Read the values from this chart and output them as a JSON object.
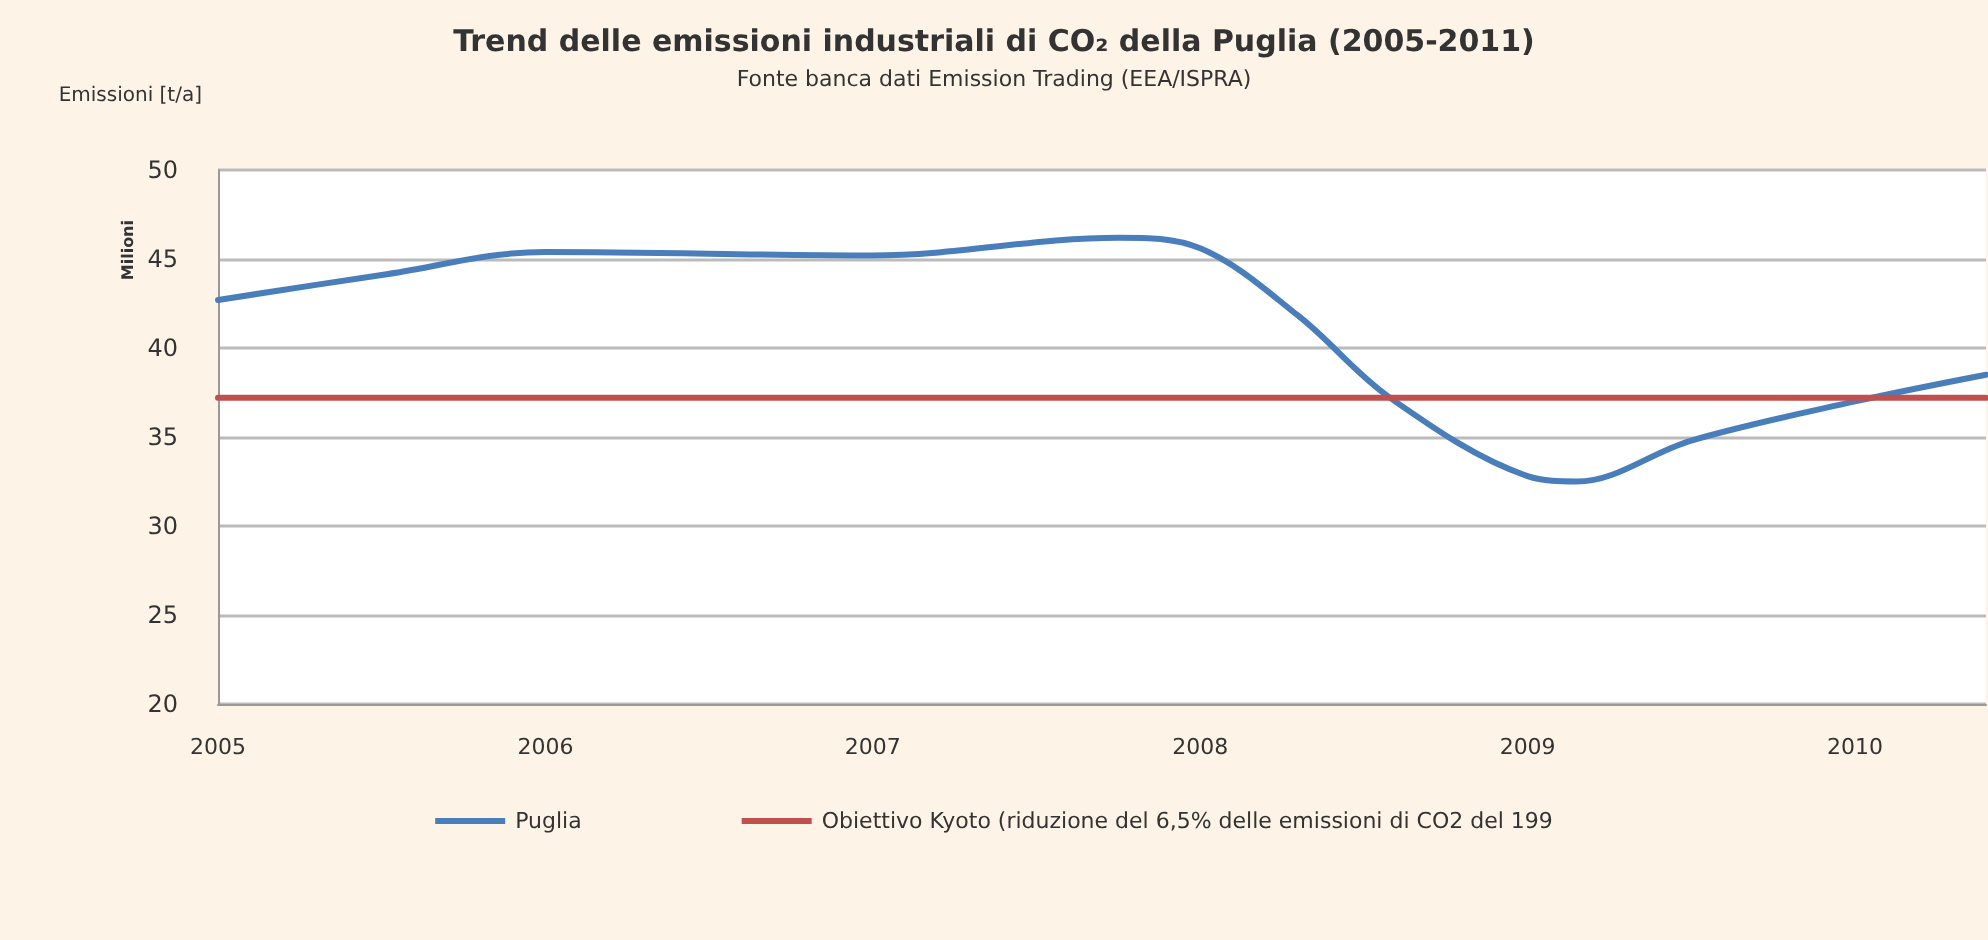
{
  "chart_data": {
    "type": "line",
    "title": "Trend delle emissioni industriali di CO₂ della Puglia (2005-2011)",
    "subtitle": "Fonte banca dati Emission Trading (EEA/ISPRA)",
    "ylabel": "Emissioni [t/a]",
    "annotations": [
      "Milioni"
    ],
    "series": [
      {
        "name": "Puglia",
        "color": "#4a7ebb",
        "x": [
          2005,
          2005.5,
          2006,
          2007,
          2007.75,
          2008,
          2008.3,
          2008.58,
          2009,
          2009.15,
          2009.5,
          2010,
          2010.4
        ],
        "values": [
          42.7,
          44.1,
          45.4,
          45.2,
          46.2,
          45.6,
          41.8,
          37.2,
          32.8,
          32.5,
          34.8,
          37.0,
          38.5
        ]
      },
      {
        "name": "Obiettivo Kyoto (riduzione del 6,5% delle emissioni di CO2 del 199",
        "color": "#c0504d",
        "x": [
          2005,
          2010.4
        ],
        "values": [
          37.2,
          37.2
        ]
      }
    ],
    "xlim": [
      2005,
      2010.4
    ],
    "xticks": [
      2005,
      2006,
      2007,
      2008,
      2009,
      2010
    ],
    "ylim": [
      20,
      50
    ],
    "yticks": [
      20,
      25,
      30,
      35,
      40,
      45,
      50
    ],
    "grid": "y",
    "legend": "bottom",
    "marker": "none",
    "line_style": "solid"
  }
}
